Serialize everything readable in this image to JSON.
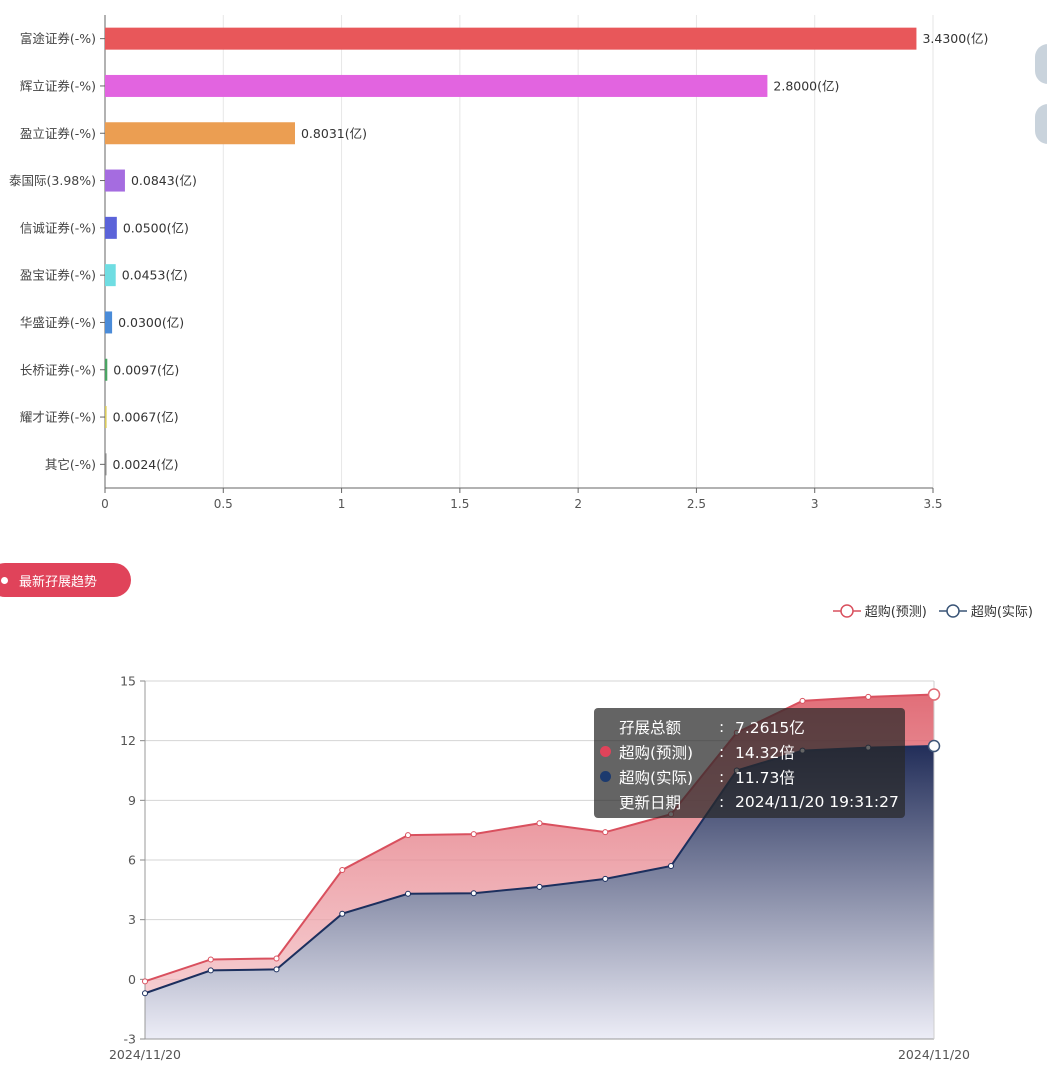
{
  "chart_data": [
    {
      "type": "bar",
      "orientation": "horizontal",
      "categories": [
        "富途证券(-%)",
        "辉立证券(-%)",
        "盈立证券(-%)",
        "泰国际(3.98%)",
        "信诚证券(-%)",
        "盈宝证券(-%)",
        "华盛证券(-%)",
        "长桥证券(-%)",
        "耀才证券(-%)",
        "其它(-%)"
      ],
      "values": [
        3.43,
        2.8,
        0.8031,
        0.0843,
        0.05,
        0.0453,
        0.03,
        0.0097,
        0.0067,
        0.0024
      ],
      "value_labels": [
        "3.4300(亿)",
        "2.8000(亿)",
        "0.8031(亿)",
        "0.0843(亿)",
        "0.0500(亿)",
        "0.0453(亿)",
        "0.0300(亿)",
        "0.0097(亿)",
        "0.0067(亿)",
        "0.0024(亿)"
      ],
      "colors": [
        "#e8575a",
        "#e264e0",
        "#eb9e52",
        "#a56ce0",
        "#5b63d9",
        "#6fdde2",
        "#4a8bd8",
        "#4aa463",
        "#d9c95a",
        "#888888"
      ],
      "xlim": [
        0,
        3.5
      ],
      "xticks": [
        "0",
        "0.5",
        "1",
        "1.5",
        "2",
        "2.5",
        "3",
        "3.5"
      ],
      "grid": true
    },
    {
      "type": "area",
      "x": [
        "2024/11/20",
        "",
        "",
        "",
        "",
        "",
        "",
        "",
        "",
        "",
        "",
        "",
        ""
      ],
      "x_tick_labels": [
        "2024/11/20",
        "2024/11/20"
      ],
      "series": [
        {
          "name": "超购(预测)",
          "color": "#d9505e",
          "values": [
            -0.1,
            1.0,
            1.05,
            5.5,
            7.25,
            7.3,
            7.85,
            7.4,
            8.3,
            12.4,
            14.0,
            14.2,
            14.32
          ]
        },
        {
          "name": "超购(实际)",
          "color": "#1c2f5e",
          "values": [
            -0.7,
            0.45,
            0.5,
            3.3,
            4.3,
            4.33,
            4.65,
            5.05,
            5.7,
            10.5,
            11.5,
            11.65,
            11.73
          ]
        }
      ],
      "ylim": [
        -3,
        15
      ],
      "yticks": [
        "-3",
        "0",
        "3",
        "6",
        "9",
        "12",
        "15"
      ],
      "grid": true,
      "legend_position": "top-right"
    }
  ],
  "section": {
    "title": "最新孖展趋势"
  },
  "tooltip": {
    "rows": [
      {
        "name": "孖展总额",
        "sep": ":",
        "value": "7.2615亿",
        "marker": ""
      },
      {
        "name": "超购(预测)",
        "sep": ":",
        "value": "14.32倍",
        "marker": "#e0435a"
      },
      {
        "name": "超购(实际)",
        "sep": ":",
        "value": "11.73倍",
        "marker": "#1c3a6e"
      },
      {
        "name": "更新日期",
        "sep": ":",
        "value": "2024/11/20 19:31:27",
        "marker": ""
      }
    ]
  }
}
